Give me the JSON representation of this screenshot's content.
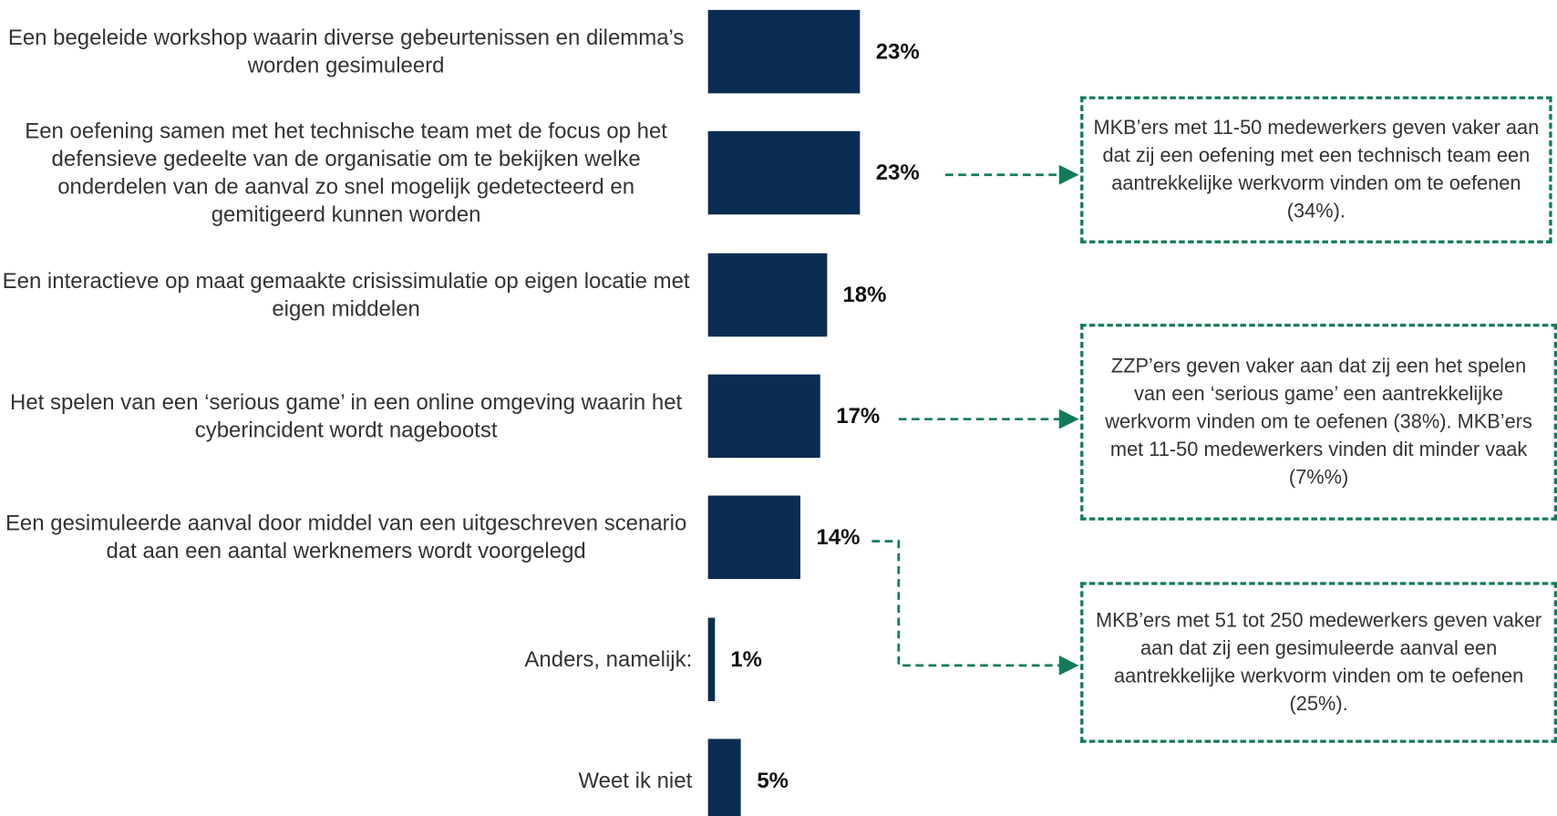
{
  "chart_data": {
    "type": "bar",
    "orientation": "horizontal",
    "color": "#0b2d51",
    "categories": [
      "Een begeleide workshop waarin diverse gebeurtenissen en dilemma’s worden gesimuleerd",
      "Een oefening samen met het technische team met de focus op het defensieve gedeelte van de organisatie om te bekijken welke onderdelen van de aanval zo snel mogelijk gedetecteerd en gemitigeerd kunnen worden",
      "Een interactieve op maat gemaakte crisissimulatie op eigen locatie met eigen middelen",
      "Het spelen van een ‘serious game’ in een online omgeving waarin het cyberincident wordt nagebootst",
      "Een gesimuleerde aanval door middel van een uitgeschreven scenario dat aan een aantal werknemers wordt voorgelegd",
      "Anders, namelijk:",
      "Weet ik niet"
    ],
    "values": [
      23,
      23,
      18,
      17,
      14,
      1,
      5
    ],
    "value_labels": [
      "23%",
      "23%",
      "18%",
      "17%",
      "14%",
      "1%",
      "5%"
    ],
    "annotations": [
      "MKB’ers met 11-50 medewerkers geven vaker aan dat zij een oefening met een technisch team een aantrekkelijke werkvorm vinden om te oefenen (34%).",
      "ZZP’ers geven vaker aan dat zij een het spelen van een ‘serious game’ een aantrekkelijke werkvorm vinden om te oefenen (38%). MKB’ers met 11-50 medewerkers vinden dit minder vaak (7%%)",
      "MKB’ers met 51 tot 250 medewerkers geven vaker aan dat zij een gesimuleerde aanval een aantrekkelijke werkvorm vinden om te oefenen (25%)."
    ]
  }
}
